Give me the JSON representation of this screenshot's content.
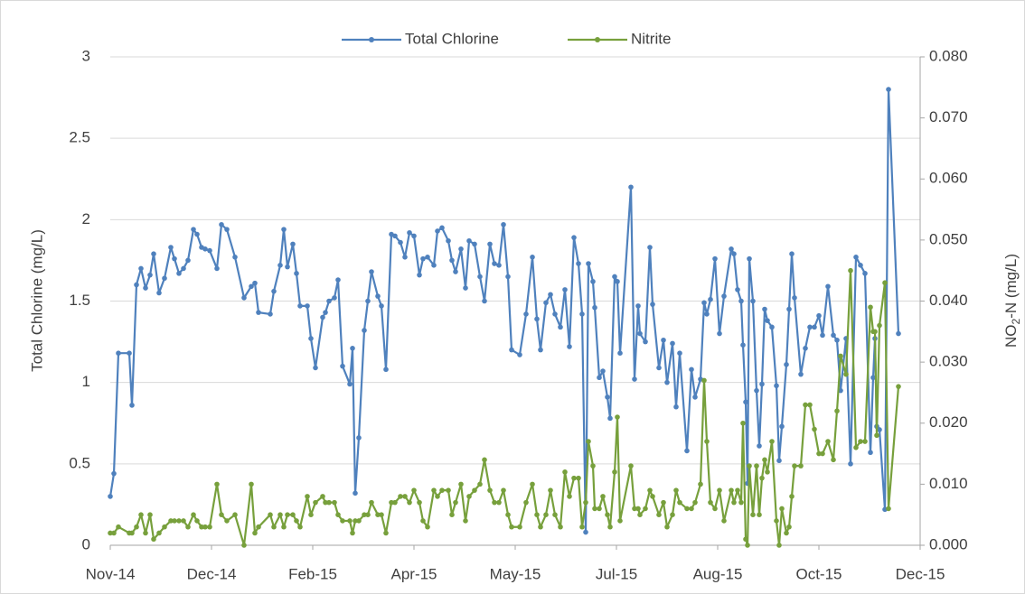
{
  "chart_data": {
    "type": "line",
    "ylabel": "Total Chlorine (mg/L)",
    "y2label": [
      "NO",
      "2",
      "-N (mg/L)"
    ],
    "legend": "top",
    "grid": true,
    "x": [
      0,
      4,
      9,
      21,
      24,
      29,
      34,
      39,
      44,
      48,
      54,
      60,
      67,
      71,
      76,
      81,
      86,
      92,
      96,
      101,
      105,
      110,
      118,
      123,
      129,
      138,
      148,
      156,
      160,
      164,
      177,
      181,
      188,
      192,
      196,
      202,
      206,
      210,
      218,
      222,
      227,
      235,
      238,
      242,
      248,
      252,
      257,
      265,
      268,
      271,
      275,
      281,
      285,
      289,
      296,
      300,
      305,
      311,
      315,
      321,
      326,
      331,
      336,
      342,
      346,
      351,
      358,
      362,
      367,
      374,
      378,
      382,
      388,
      393,
      397,
      403,
      409,
      414,
      420,
      425,
      430,
      435,
      440,
      444,
      453,
      460,
      467,
      472,
      476,
      482,
      487,
      492,
      498,
      503,
      508,
      513,
      518,
      522,
      526,
      529,
      534,
      536,
      541,
      545,
      550,
      553,
      558,
      561,
      564,
      576,
      580,
      584,
      586,
      592,
      597,
      600,
      607,
      612,
      616,
      622,
      626,
      630,
      638,
      643,
      647,
      653,
      657,
      660,
      664,
      669,
      674,
      679,
      687,
      690,
      694,
      698,
      700,
      703,
      705,
      707,
      711,
      715,
      718,
      721,
      724,
      727,
      732,
      737,
      740,
      743,
      748,
      751,
      754,
      757,
      764,
      769,
      774,
      779,
      784,
      788,
      794,
      800,
      804,
      808,
      814,
      819,
      825,
      830,
      835,
      841,
      844,
      846,
      848,
      851,
      857,
      861,
      872
    ],
    "xlim": [
      0,
      896
    ],
    "xticks": [
      {
        "value": 0,
        "label": "Nov-14"
      },
      {
        "value": 112,
        "label": "Dec-14"
      },
      {
        "value": 224,
        "label": "Feb-15"
      },
      {
        "value": 336,
        "label": "Apr-15"
      },
      {
        "value": 448,
        "label": "May-15"
      },
      {
        "value": 560,
        "label": "Jul-15"
      },
      {
        "value": 672,
        "label": "Aug-15"
      },
      {
        "value": 784,
        "label": "Oct-15"
      },
      {
        "value": 896,
        "label": "Dec-15"
      }
    ],
    "ylim": [
      0,
      3
    ],
    "yticks": [
      0,
      0.5,
      1,
      1.5,
      2,
      2.5,
      3
    ],
    "y2lim": [
      0,
      0.08
    ],
    "y2ticks": [
      {
        "value": 0,
        "label": "0.000"
      },
      {
        "value": 0.01,
        "label": "0.010"
      },
      {
        "value": 0.02,
        "label": "0.020"
      },
      {
        "value": 0.03,
        "label": "0.030"
      },
      {
        "value": 0.04,
        "label": "0.040"
      },
      {
        "value": 0.05,
        "label": "0.050"
      },
      {
        "value": 0.06,
        "label": "0.060"
      },
      {
        "value": 0.07,
        "label": "0.070"
      },
      {
        "value": 0.08,
        "label": "0.080"
      }
    ],
    "series": [
      {
        "name": "Total Chlorine",
        "color": "#4f81bd",
        "axis": "y",
        "values": [
          0.3,
          0.44,
          1.18,
          1.18,
          0.86,
          1.6,
          1.7,
          1.58,
          1.66,
          1.79,
          1.55,
          1.64,
          1.83,
          1.76,
          1.67,
          1.7,
          1.75,
          1.94,
          1.91,
          1.83,
          1.82,
          1.81,
          1.7,
          1.97,
          1.94,
          1.77,
          1.52,
          1.59,
          1.61,
          1.43,
          1.42,
          1.56,
          1.72,
          1.94,
          1.71,
          1.85,
          1.67,
          1.47,
          1.47,
          1.27,
          1.09,
          1.4,
          1.43,
          1.5,
          1.52,
          1.63,
          1.1,
          0.99,
          1.21,
          0.32,
          0.66,
          1.32,
          1.5,
          1.68,
          1.53,
          1.47,
          1.08,
          1.91,
          1.9,
          1.86,
          1.77,
          1.92,
          1.9,
          1.66,
          1.76,
          1.77,
          1.72,
          1.93,
          1.95,
          1.87,
          1.75,
          1.68,
          1.82,
          1.58,
          1.87,
          1.85,
          1.65,
          1.5,
          1.85,
          1.73,
          1.72,
          1.97,
          1.65,
          1.2,
          1.17,
          1.42,
          1.77,
          1.39,
          1.2,
          1.49,
          1.54,
          1.42,
          1.34,
          1.57,
          1.22,
          1.89,
          1.73,
          1.42,
          0.08,
          1.73,
          1.62,
          1.46,
          1.03,
          1.07,
          0.91,
          0.78,
          1.65,
          1.62,
          1.18,
          2.2,
          1.02,
          1.47,
          1.3,
          1.25,
          1.83,
          1.48,
          1.09,
          1.26,
          1.0,
          1.24,
          0.85,
          1.18,
          0.58,
          1.08,
          0.91,
          1.02,
          1.49,
          1.42,
          1.51,
          1.76,
          1.3,
          1.53,
          1.82,
          1.79,
          1.57,
          1.5,
          1.23,
          0.88,
          0.38,
          1.76,
          1.5,
          0.95,
          0.61,
          0.99,
          1.45,
          1.38,
          1.34,
          0.98,
          0.52,
          0.73,
          1.11,
          1.45,
          1.79,
          1.52,
          1.05,
          1.21,
          1.34,
          1.34,
          1.41,
          1.29,
          1.59,
          1.29,
          1.26,
          0.95,
          1.27,
          0.5,
          1.77,
          1.72,
          1.67,
          0.57,
          1.03,
          1.27,
          0.73,
          0.71,
          0.22,
          2.8,
          1.3
        ]
      },
      {
        "name": "Nitrite",
        "color": "#77a03c",
        "axis": "y2",
        "values": [
          0.002,
          0.002,
          0.003,
          0.002,
          0.002,
          0.003,
          0.005,
          0.002,
          0.005,
          0.001,
          0.002,
          0.003,
          0.004,
          0.004,
          0.004,
          0.004,
          0.003,
          0.005,
          0.004,
          0.003,
          0.003,
          0.003,
          0.01,
          0.005,
          0.004,
          0.005,
          0.0,
          0.01,
          0.002,
          0.003,
          0.005,
          0.003,
          0.005,
          0.003,
          0.005,
          0.005,
          0.004,
          0.003,
          0.008,
          0.005,
          0.007,
          0.008,
          0.007,
          0.007,
          0.007,
          0.005,
          0.004,
          0.004,
          0.002,
          0.004,
          0.004,
          0.005,
          0.005,
          0.007,
          0.005,
          0.005,
          0.002,
          0.007,
          0.007,
          0.008,
          0.008,
          0.007,
          0.009,
          0.007,
          0.004,
          0.003,
          0.009,
          0.008,
          0.009,
          0.009,
          0.005,
          0.007,
          0.01,
          0.004,
          0.008,
          0.009,
          0.01,
          0.014,
          0.009,
          0.007,
          0.007,
          0.009,
          0.005,
          0.003,
          0.003,
          0.007,
          0.01,
          0.005,
          0.003,
          0.005,
          0.009,
          0.005,
          0.003,
          0.012,
          0.008,
          0.011,
          0.011,
          0.003,
          0.007,
          0.017,
          0.013,
          0.006,
          0.006,
          0.008,
          0.005,
          0.003,
          0.012,
          0.021,
          0.004,
          0.013,
          0.006,
          0.006,
          0.005,
          0.006,
          0.009,
          0.008,
          0.005,
          0.007,
          0.003,
          0.005,
          0.009,
          0.007,
          0.006,
          0.006,
          0.007,
          0.01,
          0.027,
          0.017,
          0.007,
          0.006,
          0.009,
          0.004,
          0.009,
          0.007,
          0.009,
          0.007,
          0.02,
          0.001,
          0.0,
          0.013,
          0.005,
          0.013,
          0.005,
          0.011,
          0.014,
          0.012,
          0.017,
          0.004,
          0.0,
          0.006,
          0.002,
          0.003,
          0.008,
          0.013,
          0.013,
          0.023,
          0.023,
          0.019,
          0.015,
          0.015,
          0.017,
          0.014,
          0.022,
          0.031,
          0.028,
          0.045,
          0.016,
          0.017,
          0.017,
          0.039,
          0.035,
          0.035,
          0.018,
          0.036,
          0.043,
          0.006,
          0.026
        ]
      }
    ]
  }
}
